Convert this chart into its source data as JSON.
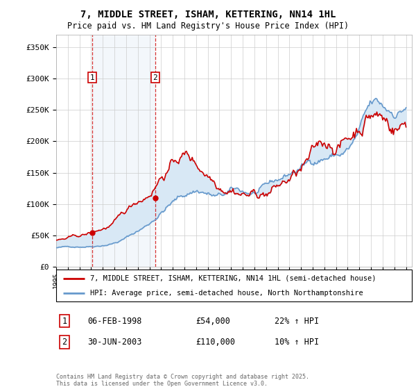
{
  "title": "7, MIDDLE STREET, ISHAM, KETTERING, NN14 1HL",
  "subtitle": "Price paid vs. HM Land Registry's House Price Index (HPI)",
  "legend_line1": "7, MIDDLE STREET, ISHAM, KETTERING, NN14 1HL (semi-detached house)",
  "legend_line2": "HPI: Average price, semi-detached house, North Northamptonshire",
  "footer": "Contains HM Land Registry data © Crown copyright and database right 2025.\nThis data is licensed under the Open Government Licence v3.0.",
  "sale1_label": "1",
  "sale1_date": "06-FEB-1998",
  "sale1_price": "£54,000",
  "sale1_hpi": "22% ↑ HPI",
  "sale2_label": "2",
  "sale2_date": "30-JUN-2003",
  "sale2_price": "£110,000",
  "sale2_hpi": "10% ↑ HPI",
  "sale1_year": 1998.09,
  "sale1_value": 54000,
  "sale2_year": 2003.5,
  "sale2_value": 110000,
  "red_color": "#cc0000",
  "blue_color": "#6699cc",
  "shade_color": "#d8e8f5",
  "grid_color": "#cccccc",
  "marker_box_color": "#cc0000",
  "ylim": [
    0,
    370000
  ],
  "yticks": [
    0,
    50000,
    100000,
    150000,
    200000,
    250000,
    300000,
    350000
  ],
  "ytick_labels": [
    "£0",
    "£50K",
    "£100K",
    "£150K",
    "£200K",
    "£250K",
    "£300K",
    "£350K"
  ],
  "xmin": 1995.0,
  "xmax": 2025.5
}
